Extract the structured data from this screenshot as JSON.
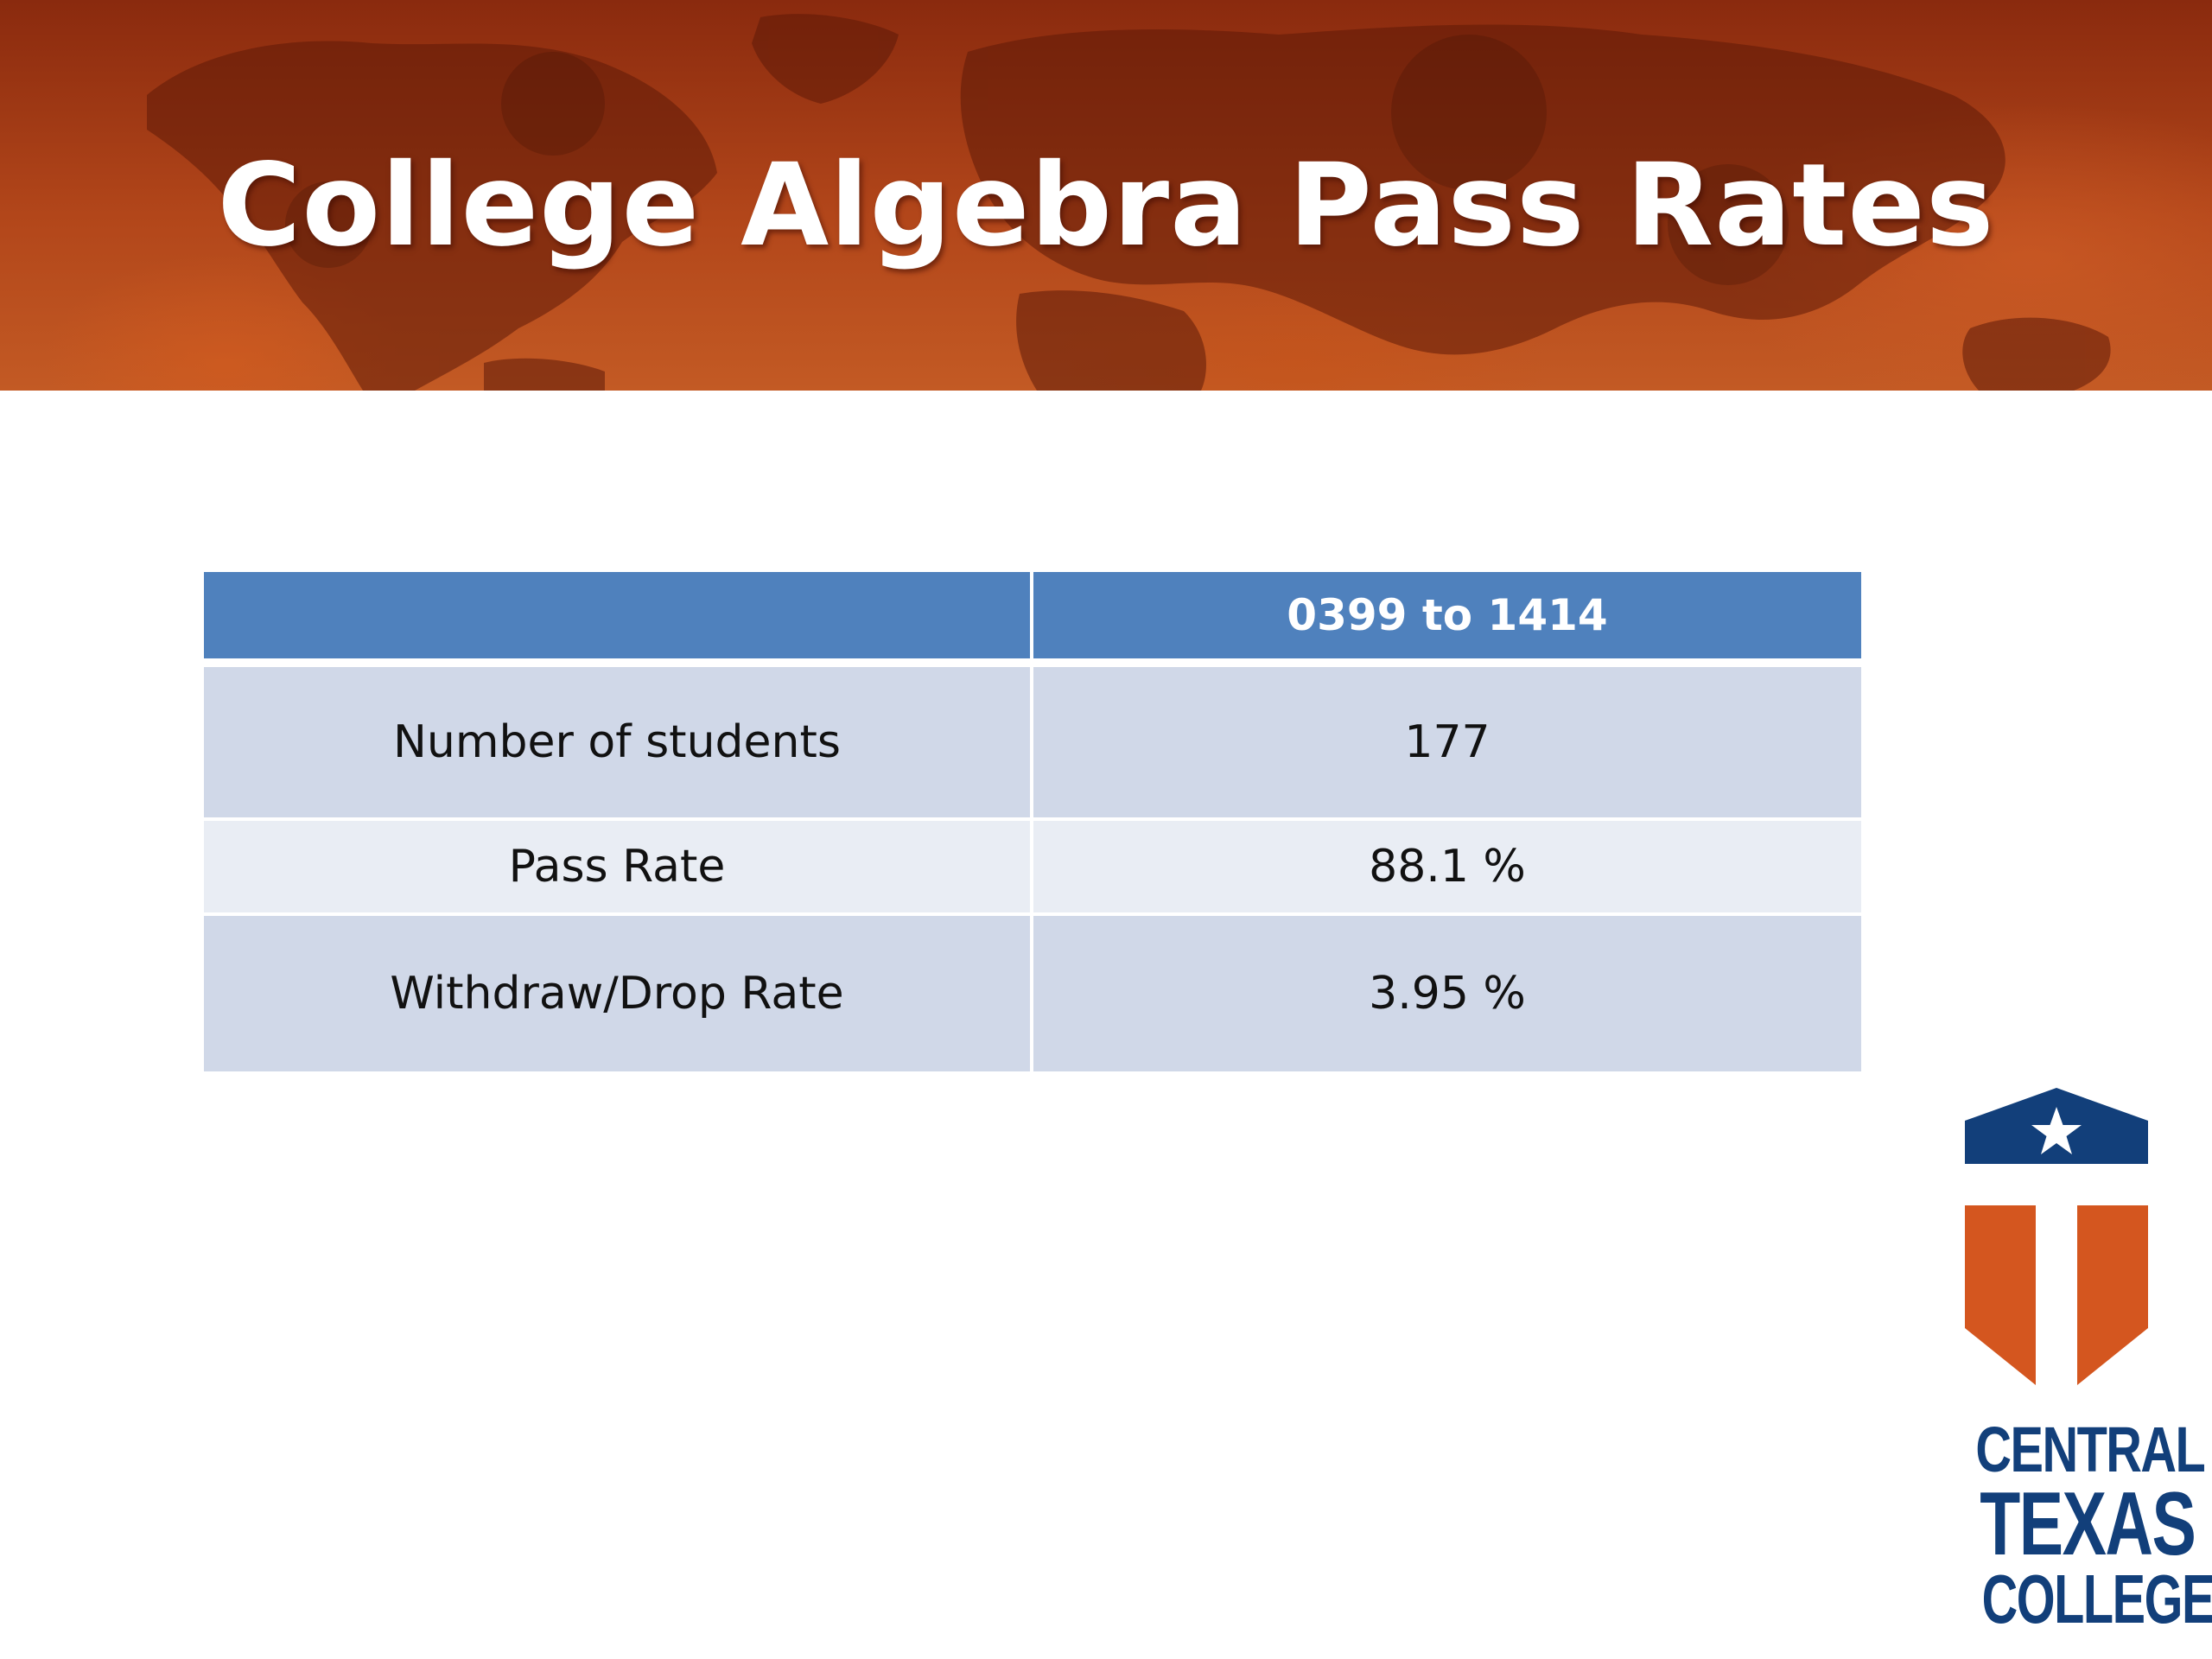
{
  "slide": {
    "title": "College Algebra Pass Rates"
  },
  "table": {
    "headers": [
      "",
      "0399 to 1414"
    ],
    "rows": [
      {
        "label": "Number of students",
        "value": "177"
      },
      {
        "label": "Pass Rate",
        "value": "88.1 %"
      },
      {
        "label": "Withdraw/Drop Rate",
        "value": "3.95 %"
      }
    ]
  },
  "logo": {
    "line1": "CENTRAL",
    "line2": "TEXAS",
    "line3": "COLLEGE",
    "colors": {
      "navy": "#123f7a",
      "orange": "#d4561f"
    },
    "icon": "star-shield-icon"
  },
  "colors": {
    "banner": "#b2461a",
    "header_fill": "#4f81bd",
    "row_dark": "#d0d8e8",
    "row_light": "#e9edf4"
  }
}
